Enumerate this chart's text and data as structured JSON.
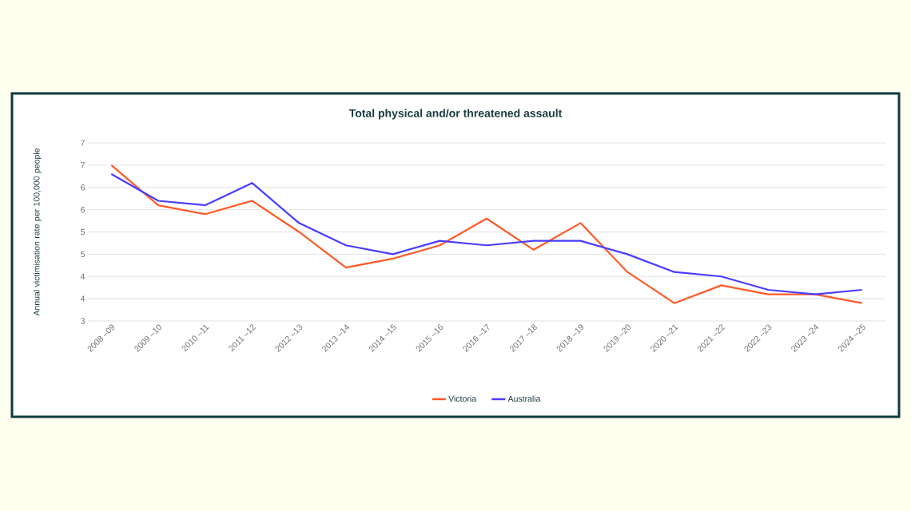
{
  "chart_data": {
    "type": "line",
    "title": "Total physical and/or threatened assault",
    "ylabel": "Annual victimisation rate per 100,000 people",
    "categories": [
      "2008 –09",
      "2009 –10",
      "2010 –11",
      "2011 –12",
      "2012 –13",
      "2013 –14",
      "2014 –15",
      "2015 –16",
      "2016 –17",
      "2017 –18",
      "2018 –19",
      "2019 –20",
      "2020 –21",
      "2021 –22",
      "2022 –23",
      "2023 –24",
      "2024 –25"
    ],
    "series": [
      {
        "name": "Victoria",
        "color": "#ff5a26",
        "values": [
          6.5,
          5.6,
          5.4,
          5.7,
          5.0,
          4.2,
          4.4,
          4.7,
          5.3,
          4.6,
          5.2,
          4.1,
          3.4,
          3.8,
          3.6,
          3.6,
          3.4
        ]
      },
      {
        "name": "Australia",
        "color": "#4a3cff",
        "values": [
          6.3,
          5.7,
          5.6,
          6.1,
          5.2,
          4.7,
          4.5,
          4.8,
          4.7,
          4.8,
          4.8,
          4.5,
          4.1,
          4.0,
          3.7,
          3.6,
          3.7
        ]
      }
    ],
    "ylim": [
      3,
      7
    ],
    "yticks": [
      3,
      {
        "value": 3.5,
        "label": "4"
      },
      4,
      {
        "value": 4.5,
        "label": "5"
      },
      5,
      {
        "value": 5.5,
        "label": "6"
      },
      6,
      {
        "value": 6.5,
        "label": "7"
      },
      7
    ],
    "grid": "y",
    "legend": "bottom",
    "marker": "none",
    "line_style": "solid"
  }
}
